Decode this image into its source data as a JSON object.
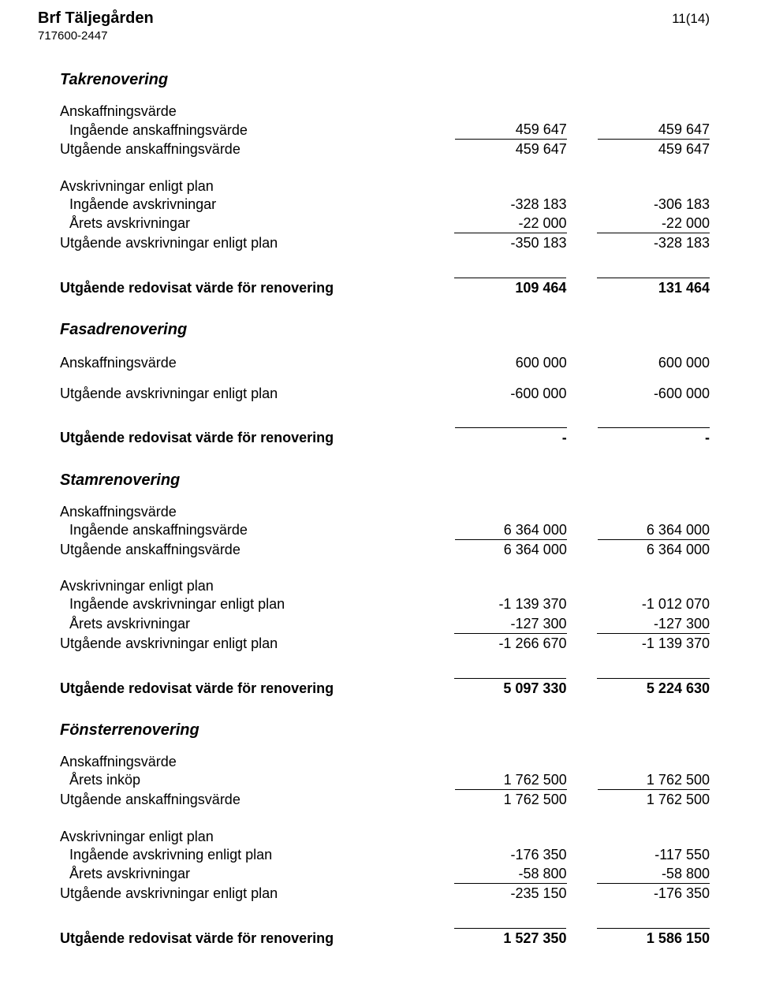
{
  "header": {
    "org_name": "Brf Täljegården",
    "org_id": "717600-2447",
    "page_num": "11(14)"
  },
  "sections": [
    {
      "title": "Takrenovering",
      "groups": [
        {
          "heading": "Anskaffningsvärde",
          "rows": [
            {
              "label": "Ingående anskaffningsvärde",
              "c1": "459 647",
              "c2": "459 647",
              "underline": true,
              "indent": true
            },
            {
              "label": "Utgående anskaffningsvärde",
              "c1": "459 647",
              "c2": "459 647"
            }
          ]
        },
        {
          "heading": "Avskrivningar enligt plan",
          "rows": [
            {
              "label": "Ingående avskrivningar",
              "c1": "-328 183",
              "c2": "-306 183",
              "indent": true
            },
            {
              "label": "Årets avskrivningar",
              "c1": "-22 000",
              "c2": "-22 000",
              "underline": true,
              "indent": true
            },
            {
              "label": "Utgående avskrivningar enligt plan",
              "c1": "-350 183",
              "c2": "-328 183"
            }
          ]
        },
        {
          "rows": [
            {
              "label": "Utgående redovisat värde för renovering",
              "c1": "109 464",
              "c2": "131 464",
              "bold": true,
              "topline": true
            }
          ]
        }
      ]
    },
    {
      "title": "Fasadrenovering",
      "groups": [
        {
          "rows": [
            {
              "label": "Anskaffningsvärde",
              "c1": "600 000",
              "c2": "600 000"
            }
          ]
        },
        {
          "rows": [
            {
              "label": "Utgående avskrivningar enligt plan",
              "c1": "-600 000",
              "c2": "-600 000"
            }
          ]
        },
        {
          "rows": [
            {
              "label": "Utgående redovisat värde för renovering",
              "c1": "-",
              "c2": "-",
              "bold": true,
              "topline": true
            }
          ]
        }
      ]
    },
    {
      "title": "Stamrenovering",
      "groups": [
        {
          "heading": "Anskaffningsvärde",
          "rows": [
            {
              "label": "Ingående anskaffningsvärde",
              "c1": "6 364 000",
              "c2": "6 364 000",
              "underline": true,
              "indent": true
            },
            {
              "label": "Utgående anskaffningsvärde",
              "c1": "6 364 000",
              "c2": "6 364 000"
            }
          ]
        },
        {
          "heading": "Avskrivningar enligt plan",
          "rows": [
            {
              "label": "Ingående avskrivningar enligt plan",
              "c1": "-1 139 370",
              "c2": "-1 012 070",
              "indent": true
            },
            {
              "label": "Årets avskrivningar",
              "c1": "-127 300",
              "c2": "-127 300",
              "underline": true,
              "indent": true
            },
            {
              "label": "Utgående avskrivningar enligt plan",
              "c1": "-1 266 670",
              "c2": "-1 139 370"
            }
          ]
        },
        {
          "rows": [
            {
              "label": "Utgående redovisat värde för renovering",
              "c1": "5 097 330",
              "c2": "5 224 630",
              "bold": true,
              "topline": true
            }
          ]
        }
      ]
    },
    {
      "title": "Fönsterrenovering",
      "groups": [
        {
          "heading": "Anskaffningsvärde",
          "rows": [
            {
              "label": "Årets inköp",
              "c1": "1 762 500",
              "c2": "1 762 500",
              "underline": true,
              "indent": true
            },
            {
              "label": "Utgående anskaffningsvärde",
              "c1": "1 762 500",
              "c2": "1 762 500"
            }
          ]
        },
        {
          "heading": "Avskrivningar enligt plan",
          "rows": [
            {
              "label": "Ingående avskrivning enligt plan",
              "c1": "-176 350",
              "c2": "-117 550",
              "indent": true
            },
            {
              "label": "Årets avskrivningar",
              "c1": "-58 800",
              "c2": "-58 800",
              "underline": true,
              "indent": true
            },
            {
              "label": "Utgående avskrivningar enligt plan",
              "c1": "-235 150",
              "c2": "-176 350"
            }
          ]
        },
        {
          "rows": [
            {
              "label": "Utgående redovisat värde för renovering",
              "c1": "1 527 350",
              "c2": "1 586 150",
              "bold": true,
              "topline": true
            }
          ]
        }
      ]
    }
  ]
}
